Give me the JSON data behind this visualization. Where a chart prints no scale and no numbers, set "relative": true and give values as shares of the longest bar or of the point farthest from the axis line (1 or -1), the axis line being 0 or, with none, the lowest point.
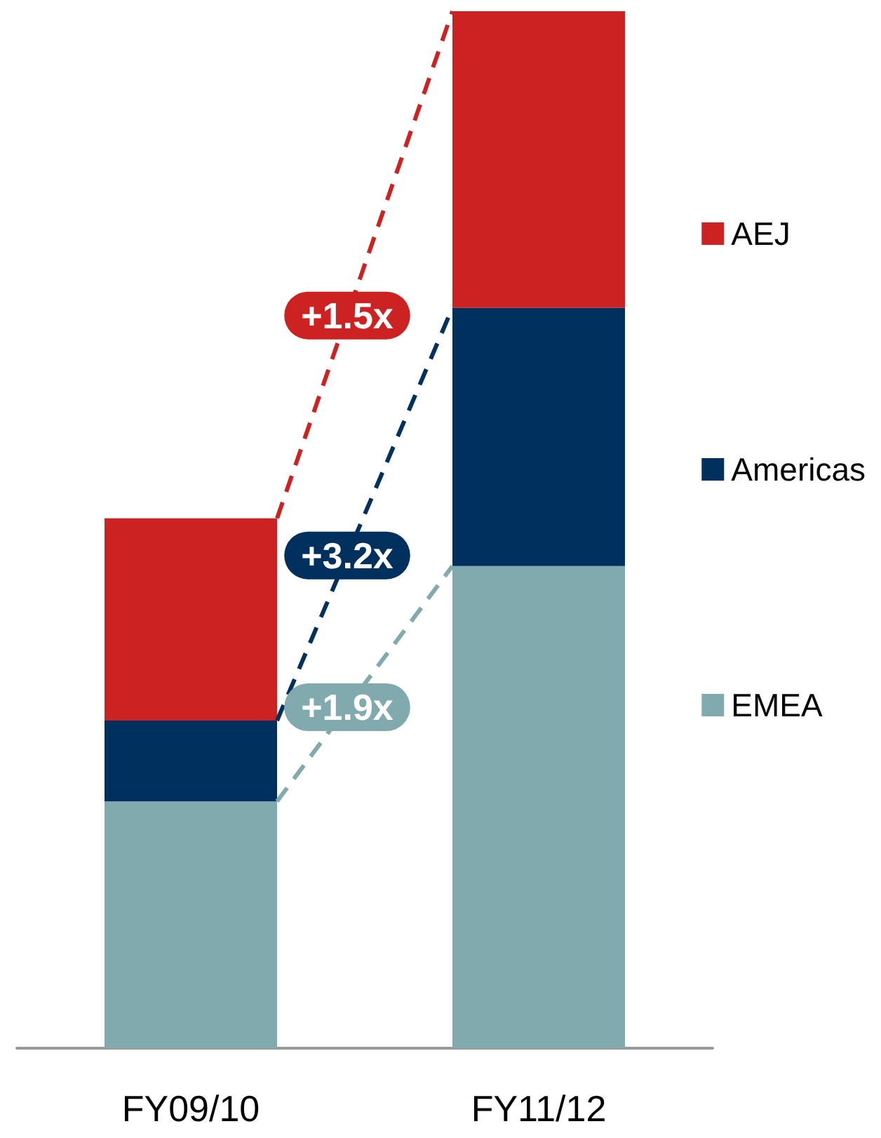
{
  "chart_data": {
    "type": "bar",
    "stacked": true,
    "relative": true,
    "categories": [
      "FY09/10",
      "FY11/12"
    ],
    "series": [
      {
        "name": "EMEA",
        "color": "#80aaae",
        "values": [
          0.238,
          0.465
        ]
      },
      {
        "name": "Americas",
        "color": "#00305e",
        "values": [
          0.078,
          0.249
        ]
      },
      {
        "name": "AEJ",
        "color": "#cc2222",
        "values": [
          0.195,
          0.286
        ]
      }
    ],
    "annotations": [
      "+1.9x",
      "+3.2x",
      "+1.5x"
    ],
    "legend": "right"
  }
}
